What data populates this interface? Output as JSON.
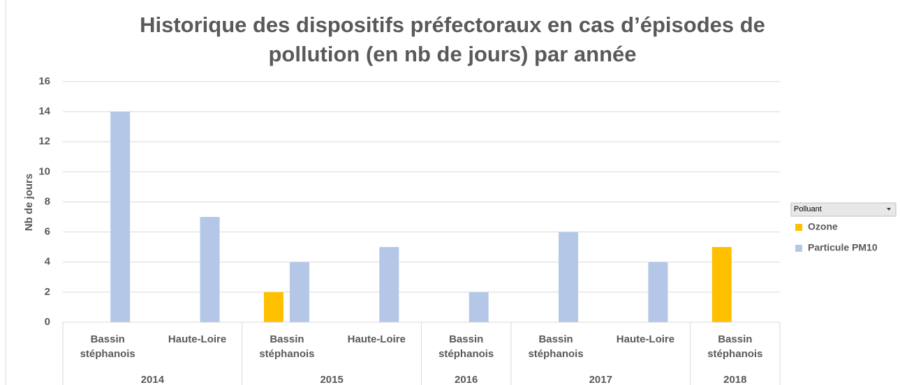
{
  "chart_data": {
    "type": "bar",
    "title": "Historique des dispositifs préfectoraux en cas d’épisodes de pollution (en nb de jours) par année",
    "ylabel": "Nb de jours",
    "groups": [
      {
        "name": "2014",
        "categories": [
          "Bassin stéphanois",
          "Haute-Loire"
        ]
      },
      {
        "name": "2015",
        "categories": [
          "Bassin stéphanois",
          "Haute-Loire"
        ]
      },
      {
        "name": "2016",
        "categories": [
          "Bassin stéphanois"
        ]
      },
      {
        "name": "2017",
        "categories": [
          "Bassin stéphanois",
          "Haute-Loire"
        ]
      },
      {
        "name": "2018",
        "categories": [
          "Bassin stéphanois"
        ]
      }
    ],
    "series": [
      {
        "name": "Ozone",
        "color": "#ffc000",
        "values": [
          null,
          null,
          2,
          null,
          null,
          null,
          null,
          5
        ]
      },
      {
        "name": "Particule PM10",
        "color": "#b4c7e7",
        "values": [
          14,
          7,
          4,
          5,
          2,
          6,
          4,
          null
        ]
      }
    ],
    "legend_title": "Polluant",
    "legend": "right",
    "ylim": [
      0,
      16
    ],
    "yticks": [
      0,
      2,
      4,
      6,
      8,
      10,
      12,
      14,
      16
    ],
    "grid": true
  }
}
